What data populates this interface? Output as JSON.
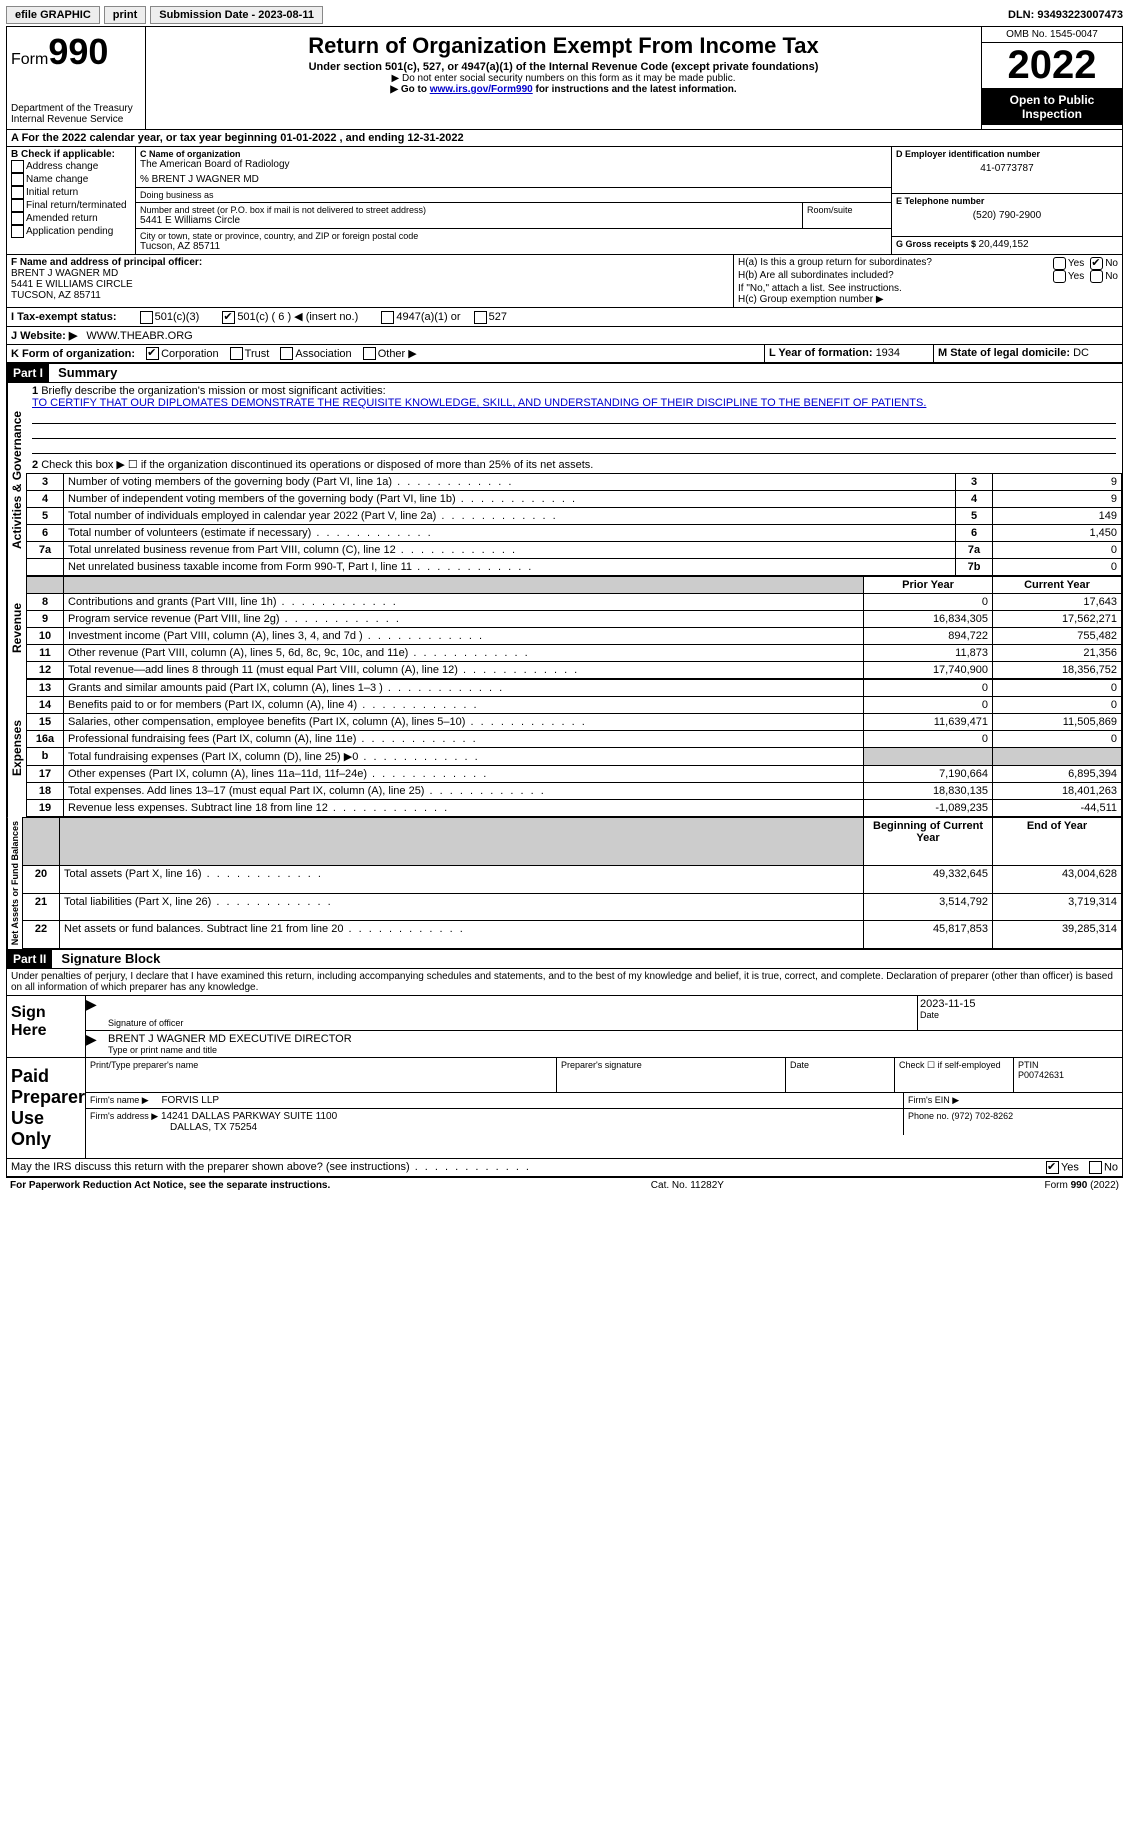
{
  "topbar": {
    "efile": "efile GRAPHIC",
    "print": "print",
    "subdate_label": "Submission Date - ",
    "subdate": "2023-08-11",
    "dln_label": "DLN: ",
    "dln": "93493223007473"
  },
  "header": {
    "form_prefix": "Form",
    "form_num": "990",
    "dept": "Department of the Treasury",
    "irs": "Internal Revenue Service",
    "title": "Return of Organization Exempt From Income Tax",
    "sub": "Under section 501(c), 527, or 4947(a)(1) of the Internal Revenue Code (except private foundations)",
    "note1": "▶ Do not enter social security numbers on this form as it may be made public.",
    "note2_pre": "▶ Go to ",
    "note2_link": "www.irs.gov/Form990",
    "note2_post": " for instructions and the latest information.",
    "omb": "OMB No. 1545-0047",
    "year": "2022",
    "open": "Open to Public Inspection"
  },
  "rowA": {
    "text_pre": "A For the 2022 calendar year, or tax year beginning ",
    "begin": "01-01-2022",
    "mid": " , and ending ",
    "end": "12-31-2022"
  },
  "boxB": {
    "label": "B Check if applicable:",
    "items": [
      "Address change",
      "Name change",
      "Initial return",
      "Final return/terminated",
      "Amended return",
      "Application pending"
    ]
  },
  "boxC": {
    "name_label": "C Name of organization",
    "name": "The American Board of Radiology",
    "care_of": "% BRENT J WAGNER MD",
    "dba_label": "Doing business as",
    "addr_label": "Number and street (or P.O. box if mail is not delivered to street address)",
    "room_label": "Room/suite",
    "addr": "5441 E Williams Circle",
    "city_label": "City or town, state or province, country, and ZIP or foreign postal code",
    "city": "Tucson, AZ  85711"
  },
  "boxD": {
    "label": "D Employer identification number",
    "val": "41-0773787"
  },
  "boxE": {
    "label": "E Telephone number",
    "val": "(520) 790-2900"
  },
  "boxG": {
    "label": "G Gross receipts $ ",
    "val": "20,449,152"
  },
  "boxF": {
    "label": "F Name and address of principal officer:",
    "name": "BRENT J WAGNER MD",
    "addr": "5441 E WILLIAMS CIRCLE",
    "city": "TUCSON, AZ  85711"
  },
  "boxH": {
    "a": "H(a) Is this a group return for subordinates?",
    "b": "H(b) Are all subordinates included?",
    "note": "If \"No,\" attach a list. See instructions.",
    "c": "H(c) Group exemption number ▶",
    "yes": "Yes",
    "no": "No"
  },
  "rowI": {
    "label": "I   Tax-exempt status:",
    "o1": "501(c)(3)",
    "o2_pre": "501(c) ( ",
    "o2_num": "6",
    "o2_post": " ) ◀ (insert no.)",
    "o3": "4947(a)(1) or",
    "o4": "527"
  },
  "rowJ": {
    "label": "J   Website: ▶",
    "val": "WWW.THEABR.ORG"
  },
  "rowK": {
    "label": "K Form of organization:",
    "o1": "Corporation",
    "o2": "Trust",
    "o3": "Association",
    "o4": "Other ▶"
  },
  "rowL": {
    "label": "L Year of formation: ",
    "val": "1934"
  },
  "rowM": {
    "label": "M State of legal domicile: ",
    "val": "DC"
  },
  "part1": {
    "header": "Part I",
    "title": "Summary",
    "q1": "Briefly describe the organization's mission or most significant activities:",
    "mission": "TO CERTIFY THAT OUR DIPLOMATES DEMONSTRATE THE REQUISITE KNOWLEDGE, SKILL, AND UNDERSTANDING OF THEIR DISCIPLINE TO THE BENEFIT OF PATIENTS.",
    "q2": "Check this box ▶ ☐ if the organization discontinued its operations or disposed of more than 25% of its net assets.",
    "lines": [
      {
        "n": "3",
        "t": "Number of voting members of the governing body (Part VI, line 1a)",
        "b": "3",
        "v": "9"
      },
      {
        "n": "4",
        "t": "Number of independent voting members of the governing body (Part VI, line 1b)",
        "b": "4",
        "v": "9"
      },
      {
        "n": "5",
        "t": "Total number of individuals employed in calendar year 2022 (Part V, line 2a)",
        "b": "5",
        "v": "149"
      },
      {
        "n": "6",
        "t": "Total number of volunteers (estimate if necessary)",
        "b": "6",
        "v": "1,450"
      },
      {
        "n": "7a",
        "t": "Total unrelated business revenue from Part VIII, column (C), line 12",
        "b": "7a",
        "v": "0"
      },
      {
        "n": "",
        "t": "Net unrelated business taxable income from Form 990-T, Part I, line 11",
        "b": "7b",
        "v": "0"
      }
    ],
    "prior_hdr": "Prior Year",
    "curr_hdr": "Current Year",
    "revenue": [
      {
        "n": "8",
        "t": "Contributions and grants (Part VIII, line 1h)",
        "p": "0",
        "c": "17,643"
      },
      {
        "n": "9",
        "t": "Program service revenue (Part VIII, line 2g)",
        "p": "16,834,305",
        "c": "17,562,271"
      },
      {
        "n": "10",
        "t": "Investment income (Part VIII, column (A), lines 3, 4, and 7d )",
        "p": "894,722",
        "c": "755,482"
      },
      {
        "n": "11",
        "t": "Other revenue (Part VIII, column (A), lines 5, 6d, 8c, 9c, 10c, and 11e)",
        "p": "11,873",
        "c": "21,356"
      },
      {
        "n": "12",
        "t": "Total revenue—add lines 8 through 11 (must equal Part VIII, column (A), line 12)",
        "p": "17,740,900",
        "c": "18,356,752"
      }
    ],
    "expenses": [
      {
        "n": "13",
        "t": "Grants and similar amounts paid (Part IX, column (A), lines 1–3 )",
        "p": "0",
        "c": "0"
      },
      {
        "n": "14",
        "t": "Benefits paid to or for members (Part IX, column (A), line 4)",
        "p": "0",
        "c": "0"
      },
      {
        "n": "15",
        "t": "Salaries, other compensation, employee benefits (Part IX, column (A), lines 5–10)",
        "p": "11,639,471",
        "c": "11,505,869"
      },
      {
        "n": "16a",
        "t": "Professional fundraising fees (Part IX, column (A), line 11e)",
        "p": "0",
        "c": "0"
      },
      {
        "n": "b",
        "t": "Total fundraising expenses (Part IX, column (D), line 25) ▶0",
        "p": "SHADE",
        "c": "SHADE"
      },
      {
        "n": "17",
        "t": "Other expenses (Part IX, column (A), lines 11a–11d, 11f–24e)",
        "p": "7,190,664",
        "c": "6,895,394"
      },
      {
        "n": "18",
        "t": "Total expenses. Add lines 13–17 (must equal Part IX, column (A), line 25)",
        "p": "18,830,135",
        "c": "18,401,263"
      },
      {
        "n": "19",
        "t": "Revenue less expenses. Subtract line 18 from line 12",
        "p": "-1,089,235",
        "c": "-44,511"
      }
    ],
    "boy_hdr": "Beginning of Current Year",
    "eoy_hdr": "End of Year",
    "netassets": [
      {
        "n": "20",
        "t": "Total assets (Part X, line 16)",
        "p": "49,332,645",
        "c": "43,004,628"
      },
      {
        "n": "21",
        "t": "Total liabilities (Part X, line 26)",
        "p": "3,514,792",
        "c": "3,719,314"
      },
      {
        "n": "22",
        "t": "Net assets or fund balances. Subtract line 21 from line 20",
        "p": "45,817,853",
        "c": "39,285,314"
      }
    ],
    "section_labels": {
      "ag": "Activities & Governance",
      "rev": "Revenue",
      "exp": "Expenses",
      "na": "Net Assets or Fund Balances"
    }
  },
  "part2": {
    "header": "Part II",
    "title": "Signature Block",
    "decl": "Under penalties of perjury, I declare that I have examined this return, including accompanying schedules and statements, and to the best of my knowledge and belief, it is true, correct, and complete. Declaration of preparer (other than officer) is based on all information of which preparer has any knowledge.",
    "sign_here": "Sign Here",
    "sig_officer": "Signature of officer",
    "sig_date_label": "Date",
    "sig_date": "2023-11-15",
    "print_name": "BRENT J WAGNER MD  EXECUTIVE DIRECTOR",
    "print_label": "Type or print name and title",
    "paid": "Paid Preparer Use Only",
    "prep_name_label": "Print/Type preparer's name",
    "prep_sig_label": "Preparer's signature",
    "date_label": "Date",
    "check_self": "Check ☐ if self-employed",
    "ptin_label": "PTIN",
    "ptin": "P00742631",
    "firm_name_label": "Firm's name   ▶",
    "firm_name": "FORVIS LLP",
    "firm_ein_label": "Firm's EIN ▶",
    "firm_addr_label": "Firm's address ▶",
    "firm_addr1": "14241 DALLAS PARKWAY SUITE 1100",
    "firm_addr2": "DALLAS, TX  75254",
    "phone_label": "Phone no. ",
    "phone": "(972) 702-8262",
    "may_irs": "May the IRS discuss this return with the preparer shown above? (see instructions)",
    "yes": "Yes",
    "no": "No"
  },
  "footer": {
    "pra": "For Paperwork Reduction Act Notice, see the separate instructions.",
    "cat": "Cat. No. 11282Y",
    "form": "Form 990 (2022)"
  }
}
